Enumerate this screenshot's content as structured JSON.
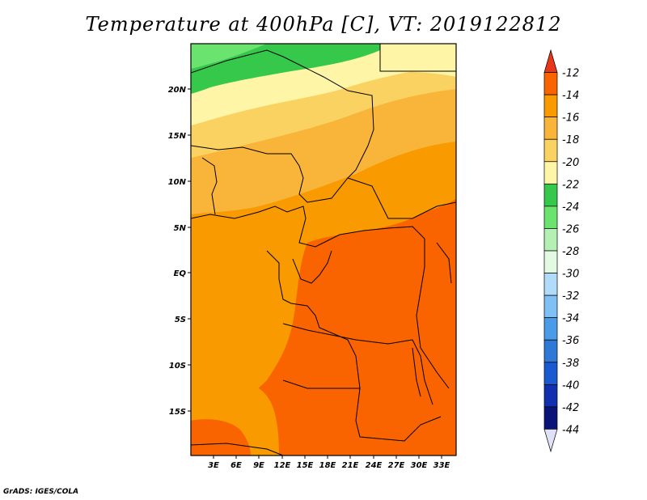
{
  "title": "Temperature at 400hPa [C], VT: 2019122812",
  "footer": "GrADS: IGES/COLA",
  "map": {
    "lat_labels": [
      "20N",
      "15N",
      "10N",
      "5N",
      "EQ",
      "5S",
      "10S",
      "15S"
    ],
    "lon_labels": [
      "3E",
      "6E",
      "9E",
      "12E",
      "15E",
      "18E",
      "21E",
      "24E",
      "27E",
      "30E",
      "33E"
    ]
  },
  "colorbar": {
    "labels": [
      "-12",
      "-14",
      "-16",
      "-18",
      "-20",
      "-22",
      "-24",
      "-26",
      "-28",
      "-30",
      "-32",
      "-34",
      "-36",
      "-38",
      "-40",
      "-42",
      "-44"
    ],
    "colors": [
      "#e8361a",
      "#fa6400",
      "#f89a00",
      "#f9b43a",
      "#fad261",
      "#fef5a6",
      "#36c84a",
      "#6ae46e",
      "#b4f0b4",
      "#e1fae1",
      "#b0dcfa",
      "#7fc0f5",
      "#4a9be8",
      "#2e78d8",
      "#1a5ad0",
      "#1030b0",
      "#0a1478",
      "#e0e0f8"
    ]
  }
}
